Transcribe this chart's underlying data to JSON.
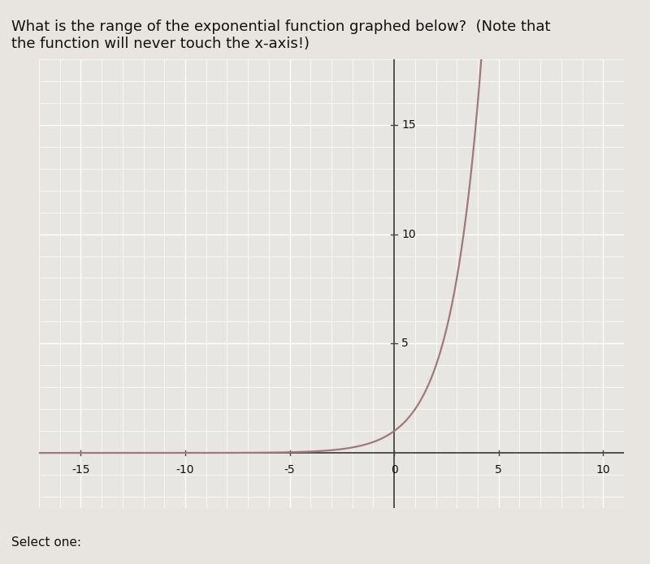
{
  "title_line1": "What is the range of the exponential function graphed below?  (Note that",
  "title_line2": "the function will never touch the x-axis!)",
  "select_one_label": "Select one:",
  "xlim": [
    -17,
    11
  ],
  "ylim": [
    -2.5,
    18
  ],
  "x_ticks": [
    -15,
    -10,
    -5,
    0,
    5,
    10
  ],
  "y_ticks": [
    5,
    10,
    15
  ],
  "curve_color": "#a07878",
  "curve_linewidth": 1.6,
  "background_color": "#e8e4e0",
  "plot_bg_color": "#e8e6e2",
  "grid_color": "#ffffff",
  "axis_color": "#444444",
  "text_color": "#111111",
  "title_fontsize": 13.0,
  "tick_fontsize": 10,
  "select_fontsize": 11,
  "curve_base": 2.0,
  "x_start": -17,
  "x_end": 10.5,
  "y_label_x_offset": 0.35,
  "x_label_y_offset": -0.5
}
